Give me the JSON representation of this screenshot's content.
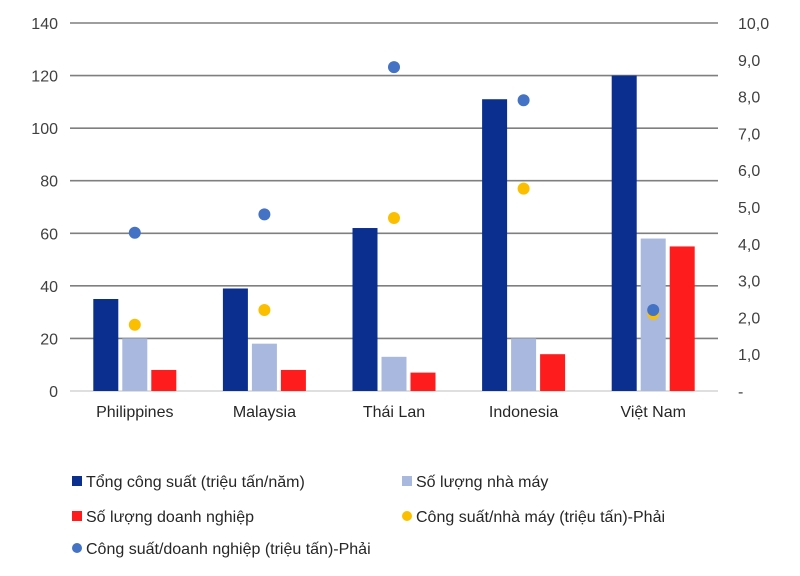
{
  "chart_data": {
    "type": "bar",
    "title": "",
    "xlabel": "",
    "ylabel": "",
    "categories": [
      "Philippines",
      "Malaysia",
      "Thái Lan",
      "Indonesia",
      "Việt Nam"
    ],
    "ylim_left": [
      0,
      140
    ],
    "ylim_right": [
      0,
      10
    ],
    "left_ticks": [
      "0",
      "20",
      "40",
      "60",
      "80",
      "100",
      "120",
      "140"
    ],
    "right_ticks": [
      "-",
      "1,0",
      "2,0",
      "3,0",
      "4,0",
      "5,0",
      "6,0",
      "7,0",
      "8,0",
      "9,0",
      "10,0"
    ],
    "grid": true,
    "legend_position": "bottom",
    "series": [
      {
        "name": "Tổng công suất (triệu tấn/năm)",
        "kind": "bar",
        "axis": "left",
        "color": "#0a2f8f",
        "values": [
          35,
          39,
          62,
          111,
          120
        ]
      },
      {
        "name": "Số lượng nhà máy",
        "kind": "bar",
        "axis": "left",
        "color": "#a8b8de",
        "values": [
          20,
          18,
          13,
          20,
          58
        ]
      },
      {
        "name": "Số lượng doanh nghiệp",
        "kind": "bar",
        "axis": "left",
        "color": "#fe1c1c",
        "values": [
          8,
          8,
          7,
          14,
          55
        ]
      },
      {
        "name": "Công suất/nhà máy (triệu tấn)-Phải",
        "kind": "dot",
        "axis": "right",
        "color": "#fcbf00",
        "values": [
          1.8,
          2.2,
          4.7,
          5.5,
          2.1
        ]
      },
      {
        "name": "Công suất/doanh nghiệp (triệu tấn)-Phải",
        "kind": "dot",
        "axis": "right",
        "color": "#4472c4",
        "values": [
          4.3,
          4.8,
          8.8,
          7.9,
          2.2
        ]
      }
    ]
  }
}
